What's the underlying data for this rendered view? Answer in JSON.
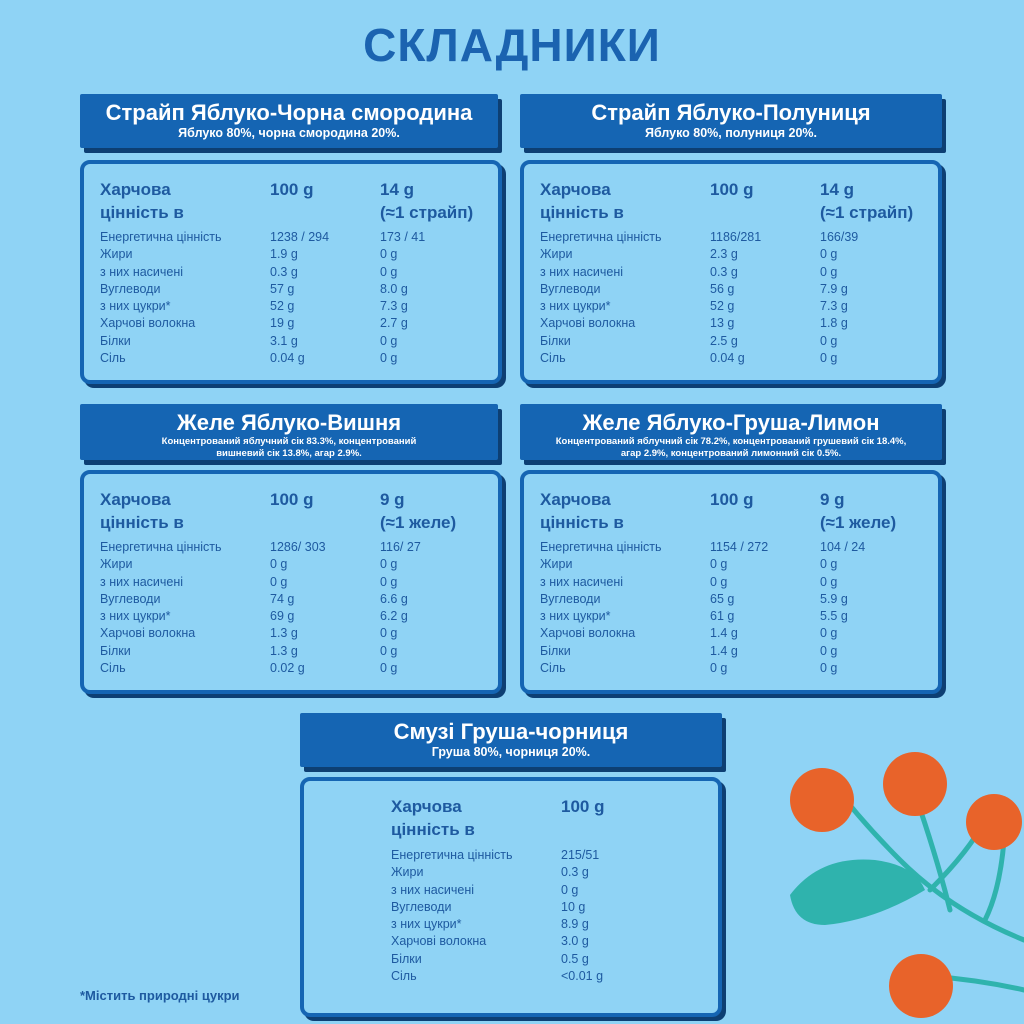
{
  "title": "СКЛАДНИКИ",
  "footnote": "*Містить природні цукри",
  "colors": {
    "background": "#8fd3f5",
    "accent": "#1565b3",
    "berry": "#e8632a",
    "leaf": "#2fb3ad"
  },
  "row_labels": [
    "Енергетична цінність",
    "Жири",
    "з них насичені",
    "Вуглеводи",
    "з них цукри*",
    "Харчові волокна",
    "Білки",
    "Сіль"
  ],
  "header_label": [
    "Харчова",
    "цінність в"
  ],
  "header_col2": "100 g",
  "sections": [
    {
      "title": "Страйп Яблуко-Чорна смородина",
      "subtitle": [
        "Яблуко 80%, чорна смородина 20%."
      ],
      "col3_header": [
        "14 g",
        "(≈1 страйп)"
      ],
      "col2": [
        "1238 / 294",
        "1.9 g",
        "0.3 g",
        "57 g",
        "52 g",
        "19 g",
        "3.1 g",
        "0.04 g"
      ],
      "col3": [
        "173 / 41",
        "0 g",
        "0 g",
        "8.0 g",
        "7.3 g",
        "2.7 g",
        "0 g",
        "0 g"
      ]
    },
    {
      "title": "Страйп Яблуко-Полуниця",
      "subtitle": [
        "Яблуко 80%, полуниця 20%."
      ],
      "col3_header": [
        "14 g",
        "(≈1 страйп)"
      ],
      "col2": [
        "1186/281",
        "2.3 g",
        "0.3 g",
        "56 g",
        "52 g",
        "13 g",
        "2.5 g",
        "0.04 g"
      ],
      "col3": [
        "166/39",
        "0 g",
        "0 g",
        "7.9 g",
        "7.3 g",
        "1.8 g",
        "0 g",
        "0 g"
      ]
    },
    {
      "title": "Желе Яблуко-Вишня",
      "subtitle": [
        "Концентрований яблучний сік 83.3%, концентрований",
        "вишневий сік 13.8%, агар 2.9%."
      ],
      "col3_header": [
        "9 g",
        "(≈1 желе)"
      ],
      "col2": [
        "1286/ 303",
        "0 g",
        "0 g",
        "74 g",
        "69 g",
        "1.3 g",
        "1.3 g",
        "0.02 g"
      ],
      "col3": [
        "116/ 27",
        "0 g",
        "0 g",
        "6.6 g",
        "6.2 g",
        "0 g",
        "0 g",
        "0 g"
      ]
    },
    {
      "title": "Желе Яблуко-Груша-Лимон",
      "subtitle": [
        "Концентрований яблучний сік 78.2%, концентрований грушевий сік 18.4%,",
        "агар 2.9%,  концентрований лимонний сік 0.5%."
      ],
      "col3_header": [
        "9 g",
        "(≈1 желе)"
      ],
      "col2": [
        "1154 / 272",
        "0 g",
        "0 g",
        "65 g",
        "61 g",
        "1.4 g",
        "1.4 g",
        "0 g"
      ],
      "col3": [
        "104 / 24",
        "0 g",
        "0 g",
        "5.9 g",
        "5.5 g",
        "0 g",
        "0 g",
        "0 g"
      ]
    },
    {
      "title": "Смузі Груша-чорниця",
      "subtitle": [
        "Груша 80%, чорниця 20%."
      ],
      "col2": [
        "215/51",
        "0.3 g",
        "0 g",
        "10 g",
        "8.9 g",
        "3.0 g",
        "0.5 g",
        "<0.01 g"
      ]
    }
  ]
}
